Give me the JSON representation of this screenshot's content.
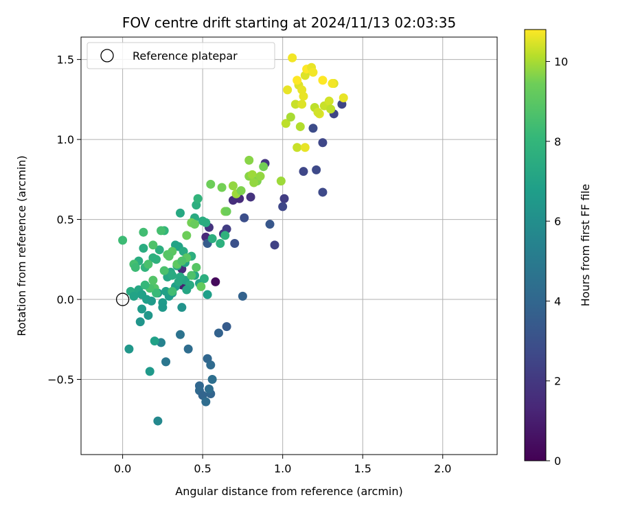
{
  "chart_data": {
    "type": "scatter",
    "title": "FOV centre drift starting at 2024/11/13 02:03:35",
    "xlabel": "Angular distance from reference (arcmin)",
    "ylabel": "Rotation from reference (arcmin)",
    "xlim": [
      -0.26,
      2.34
    ],
    "ylim": [
      -0.97,
      1.64
    ],
    "xticks": [
      0.0,
      0.5,
      1.0,
      1.5,
      2.0
    ],
    "xtick_labels": [
      "0.0",
      "0.5",
      "1.0",
      "1.5",
      "2.0"
    ],
    "yticks": [
      -0.5,
      0.0,
      0.5,
      1.0,
      1.5
    ],
    "ytick_labels": [
      "−0.5",
      "0.0",
      "0.5",
      "1.0",
      "1.5"
    ],
    "grid": true,
    "colormap": "viridis",
    "colorbar": {
      "label": "Hours from first FF file",
      "range": [
        0,
        10.8
      ],
      "ticks": [
        0,
        2,
        4,
        6,
        8,
        10
      ],
      "tick_labels": [
        "0",
        "2",
        "4",
        "6",
        "8",
        "10"
      ]
    },
    "legend": {
      "position": "upper-left",
      "entries": [
        {
          "label": "Reference platepar",
          "marker": "open-circle"
        }
      ]
    },
    "reference_point": {
      "x": 0.0,
      "y": 0.0
    },
    "series": [
      {
        "x": [
          0.12,
          0.37,
          0.52,
          0.58,
          0.69,
          0.8,
          0.89,
          1.01,
          0.95,
          0.63,
          0.54,
          0.7,
          0.76,
          0.92,
          1.0,
          1.13,
          1.19,
          1.21,
          1.25,
          1.25,
          1.32,
          1.37,
          0.4,
          0.37,
          0.53,
          0.65,
          0.73,
          0.75,
          0.65,
          0.6,
          0.53,
          0.48,
          0.48,
          0.5,
          0.55,
          0.55,
          0.56,
          0.54,
          0.52,
          0.41,
          0.36,
          0.27,
          0.24,
          0.22
        ],
        "y": [
          0.03,
          0.09,
          0.39,
          0.11,
          0.62,
          0.64,
          0.85,
          0.63,
          0.34,
          0.41,
          0.45,
          0.35,
          0.51,
          0.47,
          0.58,
          0.8,
          1.07,
          0.81,
          0.67,
          0.98,
          1.16,
          1.22,
          0.26,
          0.19,
          0.35,
          0.44,
          0.63,
          0.02,
          -0.17,
          -0.21,
          -0.37,
          -0.54,
          -0.57,
          -0.6,
          -0.59,
          -0.41,
          -0.5,
          -0.56,
          -0.64,
          -0.31,
          -0.22,
          -0.39,
          -0.27,
          -0.76
        ],
        "hours": [
          0.1,
          1.0,
          1.4,
          0.3,
          1.6,
          1.8,
          1.9,
          2.2,
          2.4,
          2.0,
          1.8,
          3.0,
          2.9,
          3.3,
          2.6,
          2.6,
          2.8,
          2.7,
          2.7,
          2.6,
          2.5,
          2.5,
          1.6,
          1.5,
          3.5,
          2.2,
          1.5,
          3.8,
          3.5,
          3.8,
          4.0,
          4.0,
          4.1,
          3.9,
          3.9,
          4.2,
          4.4,
          4.3,
          4.3,
          4.3,
          4.6,
          4.8,
          5.4,
          5.7
        ]
      },
      {
        "x": [
          0.05,
          0.1,
          0.12,
          0.15,
          0.18,
          0.22,
          0.25,
          0.29,
          0.31,
          0.33,
          0.37,
          0.39,
          0.42,
          0.45,
          0.48,
          0.51,
          0.53,
          0.36,
          0.39,
          0.35,
          0.13,
          0.12,
          0.16,
          0.11,
          0.25,
          0.27,
          0.28,
          0.3,
          0.34,
          0.33,
          0.36,
          0.38,
          0.45,
          0.5,
          0.43,
          0.46,
          0.52,
          0.56,
          0.61,
          0.64,
          0.47,
          0.26,
          0.21,
          0.1,
          0.14,
          0.19,
          0.23,
          0.31,
          0.35,
          0.4,
          0.04,
          0.07,
          0.17,
          0.2
        ],
        "y": [
          0.05,
          0.06,
          0.03,
          0.0,
          -0.01,
          0.04,
          -0.02,
          0.02,
          0.04,
          0.08,
          -0.05,
          0.12,
          0.09,
          0.15,
          0.1,
          0.13,
          0.03,
          0.14,
          0.23,
          0.33,
          0.32,
          -0.06,
          -0.1,
          -0.14,
          -0.05,
          0.05,
          0.14,
          0.17,
          0.21,
          0.34,
          0.54,
          0.3,
          0.51,
          0.49,
          0.27,
          0.59,
          0.48,
          0.38,
          0.35,
          0.4,
          0.63,
          0.43,
          0.25,
          0.24,
          0.2,
          0.26,
          0.31,
          0.15,
          0.11,
          0.06,
          -0.31,
          0.02,
          -0.45,
          -0.26
        ],
        "hours": [
          7.4,
          7.2,
          6.9,
          6.8,
          6.6,
          6.4,
          6.6,
          6.7,
          6.5,
          6.8,
          6.2,
          7.1,
          7.4,
          7.2,
          7.0,
          7.6,
          6.8,
          7.3,
          7.1,
          7.0,
          7.5,
          6.6,
          6.4,
          6.3,
          6.5,
          6.9,
          7.2,
          7.3,
          7.2,
          7.0,
          7.3,
          7.4,
          7.4,
          7.5,
          7.6,
          7.6,
          7.5,
          7.6,
          7.7,
          7.8,
          7.9,
          8.0,
          7.8,
          7.5,
          7.9,
          7.7,
          7.6,
          7.4,
          7.3,
          7.2,
          6.4,
          7.0,
          6.5,
          6.9
        ]
      },
      {
        "x": [
          0.0,
          0.07,
          0.13,
          0.16,
          0.19,
          0.2,
          0.24,
          0.28,
          0.31,
          0.34,
          0.4,
          0.43,
          0.46,
          0.49,
          0.55,
          0.62,
          0.64,
          0.69,
          0.71,
          0.79,
          0.81,
          0.84,
          0.86,
          0.88,
          0.99,
          1.02,
          1.05,
          1.08,
          1.1,
          1.12,
          1.14,
          1.17,
          1.2,
          1.23,
          1.26,
          1.29,
          1.32,
          1.38,
          1.11,
          1.09,
          1.22,
          1.3,
          0.79,
          0.82,
          0.74,
          0.65,
          0.45,
          0.4,
          0.37,
          0.21,
          0.17,
          0.08,
          0.14,
          0.19,
          0.29,
          0.26,
          0.31,
          0.43
        ],
        "y": [
          0.37,
          0.22,
          0.42,
          0.22,
          0.34,
          0.07,
          0.43,
          0.28,
          0.3,
          0.22,
          0.4,
          0.48,
          0.2,
          0.08,
          0.72,
          0.7,
          0.55,
          0.71,
          0.66,
          0.77,
          0.78,
          0.74,
          0.77,
          0.83,
          0.74,
          1.1,
          1.14,
          1.22,
          1.34,
          1.31,
          1.4,
          1.43,
          1.2,
          1.16,
          1.21,
          1.24,
          1.35,
          1.26,
          1.08,
          0.95,
          1.17,
          1.19,
          0.87,
          0.73,
          0.68,
          0.55,
          0.47,
          0.26,
          0.24,
          0.04,
          0.07,
          0.2,
          0.09,
          0.12,
          0.27,
          0.18,
          0.05,
          0.15
        ],
        "hours": [
          8.3,
          8.5,
          8.4,
          8.6,
          8.7,
          8.8,
          8.5,
          8.9,
          9.0,
          9.1,
          9.4,
          9.5,
          8.9,
          9.2,
          9.4,
          9.5,
          9.6,
          9.8,
          9.9,
          9.7,
          9.9,
          9.6,
          9.8,
          9.5,
          9.9,
          10.2,
          10.0,
          10.3,
          10.5,
          10.6,
          10.5,
          10.4,
          10.2,
          10.5,
          10.3,
          10.4,
          10.5,
          10.6,
          10.1,
          10.3,
          10.4,
          10.2,
          9.7,
          9.8,
          9.6,
          9.4,
          9.3,
          9.0,
          8.7,
          8.2,
          8.6,
          8.3,
          8.1,
          8.8,
          8.9,
          8.6,
          8.4,
          8.7
        ]
      },
      {
        "x": [
          1.06,
          1.15,
          1.18,
          1.19,
          1.25,
          1.31,
          1.09,
          1.03,
          1.13,
          1.12,
          1.14
        ],
        "y": [
          1.51,
          1.44,
          1.45,
          1.42,
          1.37,
          1.35,
          1.37,
          1.31,
          1.27,
          1.22,
          0.95
        ],
        "hours": [
          10.7,
          10.8,
          10.6,
          10.7,
          10.8,
          10.7,
          10.8,
          10.6,
          10.6,
          10.5,
          10.6
        ]
      }
    ]
  }
}
